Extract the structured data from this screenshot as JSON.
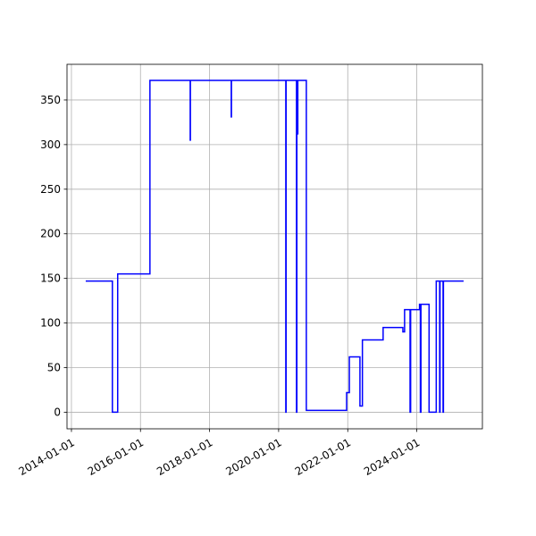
{
  "chart_data": {
    "type": "line",
    "step": "post",
    "x": [
      "2014-06-01",
      "2015-03-10",
      "2015-05-05",
      "2016-04-10",
      "2017-06-10",
      "2017-06-12",
      "2018-08-18",
      "2018-08-20",
      "2020-03-17",
      "2020-03-20",
      "2020-07-08",
      "2020-07-12",
      "2020-07-18",
      "2020-07-22",
      "2020-10-20",
      "2021-12-20",
      "2022-01-18",
      "2022-05-10",
      "2022-06-05",
      "2023-01-10",
      "2023-08-07",
      "2023-08-25",
      "2023-10-22",
      "2023-10-28",
      "2024-01-30",
      "2024-02-08",
      "2024-02-14",
      "2024-05-10",
      "2024-05-15",
      "2024-07-25",
      "2024-08-30",
      "2024-09-03",
      "2024-10-05",
      "2024-10-09",
      "2025-05-10"
    ],
    "series": [
      {
        "color": "#0000ff",
        "values": [
          147,
          0,
          155,
          372,
          305,
          372,
          331,
          372,
          0,
          372,
          0,
          372,
          312,
          372,
          2,
          22,
          62,
          7,
          81,
          95,
          90,
          115,
          0,
          115,
          121,
          0,
          121,
          0,
          0,
          147,
          0,
          147,
          0,
          147,
          147
        ]
      }
    ],
    "xlim": [
      "2013-11-15",
      "2025-11-25"
    ],
    "xticks": [
      "2014-01-01",
      "2016-01-01",
      "2018-01-01",
      "2020-01-01",
      "2022-01-01",
      "2024-01-01"
    ],
    "ylim": [
      -18.6,
      390
    ],
    "yticks": [
      0,
      50,
      100,
      150,
      200,
      250,
      300,
      350
    ],
    "grid": true
  }
}
